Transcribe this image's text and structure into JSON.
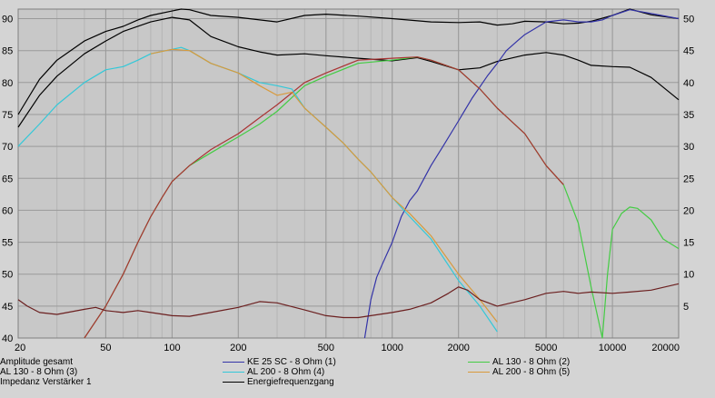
{
  "chart_data": {
    "type": "line",
    "x_scale": "log",
    "xlim": [
      20,
      20000
    ],
    "x_ticks": [
      {
        "value": 20,
        "label": "20"
      },
      {
        "value": 50,
        "label": "50"
      },
      {
        "value": 100,
        "label": "100"
      },
      {
        "value": 200,
        "label": "200"
      },
      {
        "value": 500,
        "label": "500"
      },
      {
        "value": 1000,
        "label": "1000"
      },
      {
        "value": 2000,
        "label": "2000"
      },
      {
        "value": 5000,
        "label": "5000"
      },
      {
        "value": 10000,
        "label": "10000"
      },
      {
        "value": 20000,
        "label": "20000"
      }
    ],
    "y_left": {
      "lim": [
        40,
        91.5
      ],
      "ticks": [
        {
          "value": 90,
          "label": "90"
        },
        {
          "value": 85,
          "label": "85"
        },
        {
          "value": 80,
          "label": "80"
        },
        {
          "value": 75,
          "label": "75"
        },
        {
          "value": 70,
          "label": "70"
        },
        {
          "value": 65,
          "label": "65"
        },
        {
          "value": 60,
          "label": "60"
        },
        {
          "value": 55,
          "label": "55"
        },
        {
          "value": 50,
          "label": "50"
        },
        {
          "value": 45,
          "label": "45"
        },
        {
          "value": 40,
          "label": "40"
        }
      ]
    },
    "y_right": {
      "lim": [
        0,
        51.5
      ],
      "ticks": [
        {
          "value": 50,
          "label": "50"
        },
        {
          "value": 45,
          "label": "45"
        },
        {
          "value": 40,
          "label": "40"
        },
        {
          "value": 35,
          "label": "35"
        },
        {
          "value": 30,
          "label": "30"
        },
        {
          "value": 25,
          "label": "25"
        },
        {
          "value": 20,
          "label": "20"
        },
        {
          "value": 15,
          "label": "15"
        },
        {
          "value": 10,
          "label": "10"
        },
        {
          "value": 5,
          "label": "5"
        }
      ]
    },
    "grid": true,
    "series": [
      {
        "name": "Amplitude gesamt",
        "axis": "left",
        "color": "#000000",
        "points": [
          [
            20,
            75
          ],
          [
            25,
            80.5
          ],
          [
            30,
            83.5
          ],
          [
            40,
            86.5
          ],
          [
            50,
            88
          ],
          [
            60,
            88.8
          ],
          [
            70,
            89.8
          ],
          [
            80,
            90.5
          ],
          [
            100,
            91.2
          ],
          [
            110,
            91.6
          ],
          [
            120,
            91.4
          ],
          [
            150,
            90.5
          ],
          [
            200,
            90.2
          ],
          [
            250,
            89.8
          ],
          [
            300,
            89.5
          ],
          [
            400,
            90.5
          ],
          [
            500,
            90.7
          ],
          [
            700,
            90.4
          ],
          [
            1000,
            90
          ],
          [
            1500,
            89.5
          ],
          [
            2000,
            89.4
          ],
          [
            2500,
            89.5
          ],
          [
            3000,
            89
          ],
          [
            3500,
            89.2
          ],
          [
            4000,
            89.6
          ],
          [
            5000,
            89.5
          ],
          [
            6000,
            89.2
          ],
          [
            7000,
            89.3
          ],
          [
            8000,
            89.6
          ],
          [
            10000,
            90.5
          ],
          [
            12000,
            91.5
          ],
          [
            15000,
            90.6
          ],
          [
            20000,
            90
          ]
        ]
      },
      {
        "name": "Energiefrequenzgang",
        "axis": "left",
        "color": "#000000",
        "points": [
          [
            20,
            73
          ],
          [
            25,
            78
          ],
          [
            30,
            81
          ],
          [
            40,
            84.5
          ],
          [
            50,
            86.5
          ],
          [
            60,
            88
          ],
          [
            80,
            89.5
          ],
          [
            100,
            90.2
          ],
          [
            120,
            89.8
          ],
          [
            150,
            87.2
          ],
          [
            200,
            85.6
          ],
          [
            250,
            84.8
          ],
          [
            300,
            84.3
          ],
          [
            400,
            84.5
          ],
          [
            500,
            84.2
          ],
          [
            700,
            83.8
          ],
          [
            1000,
            83.4
          ],
          [
            1300,
            83.9
          ],
          [
            1500,
            83.3
          ],
          [
            2000,
            82
          ],
          [
            2500,
            82.3
          ],
          [
            3000,
            83.3
          ],
          [
            4000,
            84.3
          ],
          [
            5000,
            84.7
          ],
          [
            6000,
            84.3
          ],
          [
            7000,
            83.5
          ],
          [
            8000,
            82.7
          ],
          [
            10000,
            82.5
          ],
          [
            12000,
            82.4
          ],
          [
            15000,
            80.8
          ],
          [
            20000,
            77.3
          ]
        ]
      },
      {
        "name": "KE 25 SC - 8 Ohm   (1)",
        "axis": "left",
        "color": "#3434a8",
        "points": [
          [
            750,
            40
          ],
          [
            800,
            46
          ],
          [
            850,
            49.5
          ],
          [
            900,
            51.5
          ],
          [
            1000,
            55
          ],
          [
            1100,
            59
          ],
          [
            1200,
            61.5
          ],
          [
            1300,
            63
          ],
          [
            1500,
            67
          ],
          [
            1700,
            70
          ],
          [
            2000,
            74
          ],
          [
            2300,
            77.5
          ],
          [
            2700,
            81
          ],
          [
            3000,
            83
          ],
          [
            3300,
            85
          ],
          [
            3700,
            86.5
          ],
          [
            4000,
            87.5
          ],
          [
            5000,
            89.5
          ],
          [
            6000,
            89.8
          ],
          [
            7000,
            89.5
          ],
          [
            8000,
            89.5
          ],
          [
            9000,
            89.8
          ],
          [
            10000,
            90.5
          ],
          [
            12000,
            91.4
          ],
          [
            15000,
            90.8
          ],
          [
            20000,
            90
          ]
        ]
      },
      {
        "name": "AL 130 - 8 Ohm (2)",
        "axis": "left",
        "color": "#44cc44",
        "points": [
          [
            40,
            40
          ],
          [
            50,
            45
          ],
          [
            60,
            50
          ],
          [
            70,
            55
          ],
          [
            80,
            59
          ],
          [
            90,
            62
          ],
          [
            100,
            64.5
          ],
          [
            120,
            67
          ],
          [
            150,
            69
          ],
          [
            200,
            71.5
          ],
          [
            250,
            73.5
          ],
          [
            300,
            75.5
          ],
          [
            400,
            79.5
          ],
          [
            500,
            81
          ],
          [
            700,
            83
          ],
          [
            1000,
            83.5
          ],
          [
            1300,
            84
          ],
          [
            1500,
            83.5
          ],
          [
            2000,
            82
          ],
          [
            2500,
            79
          ],
          [
            3000,
            76
          ],
          [
            4000,
            72
          ],
          [
            5000,
            67
          ],
          [
            6000,
            64
          ],
          [
            7000,
            58
          ],
          [
            8000,
            48
          ],
          [
            9000,
            40
          ],
          [
            9500,
            50
          ],
          [
            10000,
            57
          ],
          [
            11000,
            59.5
          ],
          [
            12000,
            60.5
          ],
          [
            13000,
            60.3
          ],
          [
            15000,
            58.5
          ],
          [
            17000,
            55.5
          ],
          [
            20000,
            54
          ]
        ]
      },
      {
        "name": "AL 130 - 8 Ohm (3)",
        "axis": "left",
        "color": "#aa3333",
        "points": [
          [
            40,
            40
          ],
          [
            50,
            45
          ],
          [
            60,
            50
          ],
          [
            70,
            55
          ],
          [
            80,
            59
          ],
          [
            90,
            62
          ],
          [
            100,
            64.5
          ],
          [
            120,
            67
          ],
          [
            150,
            69.5
          ],
          [
            200,
            72
          ],
          [
            250,
            74.5
          ],
          [
            300,
            76.5
          ],
          [
            400,
            80
          ],
          [
            500,
            81.5
          ],
          [
            700,
            83.5
          ],
          [
            1000,
            83.8
          ],
          [
            1300,
            84
          ],
          [
            1500,
            83.5
          ],
          [
            2000,
            82
          ],
          [
            2500,
            79
          ],
          [
            3000,
            76
          ],
          [
            4000,
            72
          ],
          [
            5000,
            67
          ],
          [
            6000,
            64
          ]
        ]
      },
      {
        "name": "AL 200 - 8 Ohm (4)",
        "axis": "left",
        "color": "#33c8d8",
        "points": [
          [
            20,
            70
          ],
          [
            25,
            73.5
          ],
          [
            30,
            76.5
          ],
          [
            40,
            80
          ],
          [
            50,
            82
          ],
          [
            60,
            82.5
          ],
          [
            70,
            83.5
          ],
          [
            80,
            84.5
          ],
          [
            100,
            85.2
          ],
          [
            110,
            85.5
          ],
          [
            120,
            85
          ],
          [
            150,
            83
          ],
          [
            200,
            81.5
          ],
          [
            250,
            80
          ],
          [
            300,
            79.5
          ],
          [
            350,
            79
          ],
          [
            400,
            76
          ],
          [
            500,
            73
          ],
          [
            600,
            70.5
          ],
          [
            700,
            68
          ],
          [
            800,
            66
          ],
          [
            1000,
            62
          ],
          [
            1200,
            59
          ],
          [
            1500,
            55.5
          ],
          [
            2000,
            49
          ],
          [
            2500,
            45
          ],
          [
            3000,
            41
          ]
        ]
      },
      {
        "name": "AL 200 - 8 Ohm (5)",
        "axis": "left",
        "color": "#d89a3c",
        "points": [
          [
            80,
            84.5
          ],
          [
            100,
            85.2
          ],
          [
            120,
            85
          ],
          [
            150,
            83
          ],
          [
            200,
            81.5
          ],
          [
            250,
            79.5
          ],
          [
            300,
            78
          ],
          [
            350,
            78.5
          ],
          [
            400,
            76
          ],
          [
            500,
            73
          ],
          [
            600,
            70.5
          ],
          [
            700,
            68
          ],
          [
            800,
            66
          ],
          [
            1000,
            62
          ],
          [
            1200,
            59.5
          ],
          [
            1500,
            56
          ],
          [
            2000,
            50
          ],
          [
            2500,
            46
          ],
          [
            3000,
            42.5
          ]
        ]
      },
      {
        "name": "Impedanz Verstärker 1",
        "axis": "right",
        "color": "#6b1f1f",
        "points": [
          [
            20,
            6
          ],
          [
            22,
            5
          ],
          [
            25,
            4
          ],
          [
            30,
            3.7
          ],
          [
            40,
            4.5
          ],
          [
            45,
            4.8
          ],
          [
            50,
            4.3
          ],
          [
            60,
            4
          ],
          [
            70,
            4.3
          ],
          [
            80,
            4
          ],
          [
            100,
            3.5
          ],
          [
            120,
            3.4
          ],
          [
            150,
            4
          ],
          [
            200,
            4.8
          ],
          [
            250,
            5.7
          ],
          [
            300,
            5.5
          ],
          [
            400,
            4.4
          ],
          [
            500,
            3.5
          ],
          [
            600,
            3.2
          ],
          [
            700,
            3.2
          ],
          [
            800,
            3.5
          ],
          [
            1000,
            4
          ],
          [
            1200,
            4.5
          ],
          [
            1500,
            5.5
          ],
          [
            1800,
            7
          ],
          [
            2000,
            8
          ],
          [
            2200,
            7.5
          ],
          [
            2500,
            6
          ],
          [
            3000,
            5
          ],
          [
            4000,
            6
          ],
          [
            5000,
            7
          ],
          [
            6000,
            7.3
          ],
          [
            7000,
            7
          ],
          [
            8000,
            7.2
          ],
          [
            10000,
            7
          ],
          [
            12000,
            7.2
          ],
          [
            15000,
            7.5
          ],
          [
            20000,
            8.5
          ]
        ]
      }
    ],
    "legend": [
      {
        "label": "Amplitude gesamt",
        "color": ""
      },
      {
        "label": "KE 25 SC - 8 Ohm   (1)",
        "color": "#3434a8"
      },
      {
        "label": "AL 130 - 8 Ohm (2)",
        "color": "#44cc44"
      },
      {
        "label": "AL 130 - 8 Ohm (3)",
        "color": ""
      },
      {
        "label": "AL 200 - 8 Ohm (4)",
        "color": "#33c8d8"
      },
      {
        "label": "AL 200 - 8 Ohm (5)",
        "color": "#d89a3c"
      },
      {
        "label": "Impedanz Verstärker 1",
        "color": ""
      },
      {
        "label": "Energiefrequenzgang",
        "color": "#000000"
      }
    ]
  }
}
